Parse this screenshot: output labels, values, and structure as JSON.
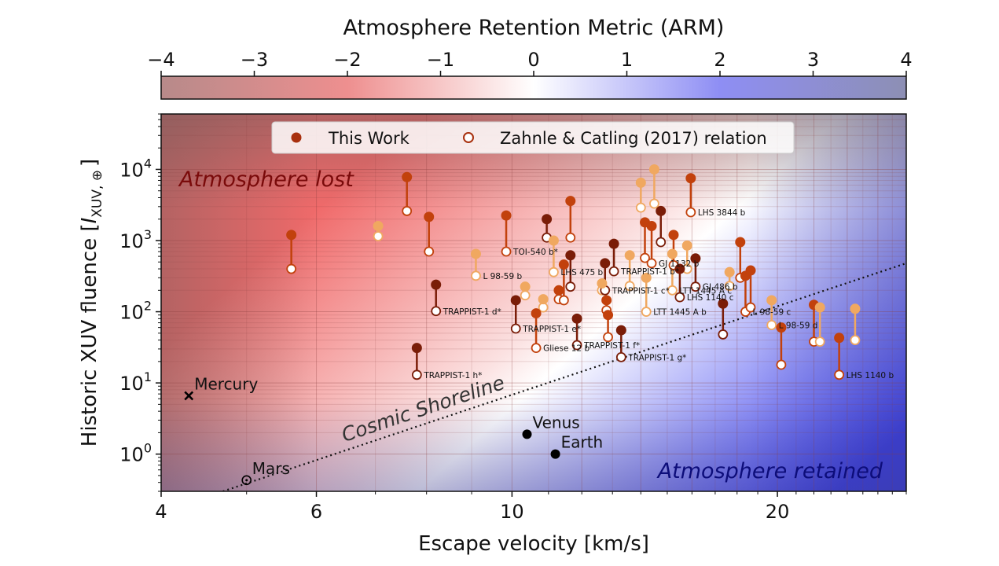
{
  "colors": {
    "lost": "#e8504e",
    "retained": "#4646ee",
    "this_work_dark": "#7a1d08",
    "this_work_mid": "#c2410c",
    "this_work_light": "#f0a860",
    "zc_marker_face": "#ffffff",
    "solar_system": "#000000"
  },
  "colorbar": {
    "label": "Atmosphere Retention Metric (ARM)",
    "ticks": [
      "−4",
      "−3",
      "−2",
      "−1",
      "0",
      "1",
      "2",
      "3",
      "4"
    ],
    "range": [
      -4,
      4
    ]
  },
  "chart_data": {
    "type": "scatter",
    "xlabel": "Escape velocity [km/s]",
    "ylabel_main": "Historic XUV fluence [",
    "ylabel_I": "I",
    "ylabel_sub": "XUV, ⊕",
    "ylabel_end": "]",
    "x_scale": "log",
    "y_scale": "log",
    "xlim": [
      4,
      28
    ],
    "ylim": [
      0.3,
      60000
    ],
    "x_ticks": [
      {
        "value": 4,
        "label": "4"
      },
      {
        "value": 6,
        "label": "6"
      },
      {
        "value": 10,
        "label": "10"
      },
      {
        "value": 20,
        "label": "20"
      }
    ],
    "y_ticks": [
      {
        "value": 1,
        "base": "10",
        "exp": "0"
      },
      {
        "value": 10,
        "base": "10",
        "exp": "1"
      },
      {
        "value": 100,
        "base": "10",
        "exp": "2"
      },
      {
        "value": 1000,
        "base": "10",
        "exp": "3"
      },
      {
        "value": 10000,
        "base": "10",
        "exp": "4"
      }
    ],
    "grid": true,
    "legend": {
      "placement": "top-center",
      "this_work": "This Work",
      "zahnle": "Zahnle & Catling (2017) relation"
    },
    "region_labels": {
      "lost": "Atmosphere lost",
      "retained": "Atmosphere retained"
    },
    "shoreline": {
      "label": "Cosmic Shoreline",
      "x": [
        4.7,
        28
      ],
      "y": [
        0.3,
        480
      ]
    },
    "solar_system": [
      {
        "name": "Mercury",
        "x": 4.3,
        "y": 6.6,
        "marker": "x"
      },
      {
        "name": "Mars",
        "x": 5.0,
        "y": 0.43,
        "marker": "circle-dot"
      },
      {
        "name": "Venus",
        "x": 10.4,
        "y": 1.9,
        "marker": "dot"
      },
      {
        "name": "Earth",
        "x": 11.2,
        "y": 1.0,
        "marker": "dot"
      }
    ],
    "planets": [
      {
        "x": 5.62,
        "this_work": 1200,
        "zc": 400,
        "shade": "mid",
        "label": ""
      },
      {
        "x": 7.05,
        "this_work": 1600,
        "zc": 1150,
        "shade": "light",
        "label": ""
      },
      {
        "x": 7.6,
        "this_work": 7800,
        "zc": 2600,
        "shade": "mid",
        "label": ""
      },
      {
        "x": 8.05,
        "this_work": 2150,
        "zc": 700,
        "shade": "mid",
        "label": ""
      },
      {
        "x": 8.2,
        "this_work": 240,
        "zc": 102,
        "shade": "dark",
        "label": "TRAPPIST-1 d*"
      },
      {
        "x": 7.8,
        "this_work": 31,
        "zc": 13,
        "shade": "dark",
        "label": "TRAPPIST-1 h*"
      },
      {
        "x": 9.1,
        "this_work": 650,
        "zc": 320,
        "shade": "light",
        "label": "L 98-59 b"
      },
      {
        "x": 9.85,
        "this_work": 2250,
        "zc": 700,
        "shade": "mid",
        "label": "TOI-540 b*"
      },
      {
        "x": 10.1,
        "this_work": 145,
        "zc": 58,
        "shade": "dark",
        "label": "TRAPPIST-1 e*"
      },
      {
        "x": 10.35,
        "this_work": 225,
        "zc": 170,
        "shade": "light",
        "label": ""
      },
      {
        "x": 10.65,
        "this_work": 95,
        "zc": 31,
        "shade": "mid",
        "label": "Gliese 12 b"
      },
      {
        "x": 10.85,
        "this_work": 150,
        "zc": 115,
        "shade": "light",
        "label": ""
      },
      {
        "x": 10.95,
        "this_work": 2000,
        "zc": 1100,
        "shade": "dark",
        "label": ""
      },
      {
        "x": 11.15,
        "this_work": 1000,
        "zc": 360,
        "shade": "light",
        "label": "LHS 475 b"
      },
      {
        "x": 11.3,
        "this_work": 200,
        "zc": 150,
        "shade": "mid",
        "label": ""
      },
      {
        "x": 11.45,
        "this_work": 460,
        "zc": 145,
        "shade": "mid",
        "label": ""
      },
      {
        "x": 11.65,
        "this_work": 3600,
        "zc": 1100,
        "shade": "mid",
        "label": ""
      },
      {
        "x": 11.65,
        "this_work": 620,
        "zc": 225,
        "shade": "dark",
        "label": ""
      },
      {
        "x": 11.85,
        "this_work": 80,
        "zc": 34,
        "shade": "dark",
        "label": "TRAPPIST-1 f*"
      },
      {
        "x": 12.65,
        "this_work": 250,
        "zc": 200,
        "shade": "light",
        "label": ""
      },
      {
        "x": 12.75,
        "this_work": 480,
        "zc": 200,
        "shade": "dark",
        "label": "TRAPPIST-1 c*"
      },
      {
        "x": 12.8,
        "this_work": 145,
        "zc": 105,
        "shade": "mid",
        "label": ""
      },
      {
        "x": 12.85,
        "this_work": 90,
        "zc": 44,
        "shade": "mid",
        "label": ""
      },
      {
        "x": 13.05,
        "this_work": 900,
        "zc": 370,
        "shade": "dark",
        "label": "TRAPPIST-1 b*"
      },
      {
        "x": 13.3,
        "this_work": 55,
        "zc": 23,
        "shade": "dark",
        "label": "TRAPPIST-1 g*"
      },
      {
        "x": 13.6,
        "this_work": 620,
        "zc": 230,
        "shade": "light",
        "label": ""
      },
      {
        "x": 14.0,
        "this_work": 6500,
        "zc": 2900,
        "shade": "light",
        "label": ""
      },
      {
        "x": 14.15,
        "this_work": 1800,
        "zc": 570,
        "shade": "mid",
        "label": ""
      },
      {
        "x": 14.2,
        "this_work": 300,
        "zc": 100,
        "shade": "light",
        "label": "LTT 1445 A b"
      },
      {
        "x": 14.4,
        "this_work": 1600,
        "zc": 480,
        "shade": "mid",
        "label": "GJ 1132 b"
      },
      {
        "x": 14.5,
        "this_work": 10000,
        "zc": 3300,
        "shade": "light",
        "label": ""
      },
      {
        "x": 14.75,
        "this_work": 2600,
        "zc": 950,
        "shade": "dark",
        "label": ""
      },
      {
        "x": 15.2,
        "this_work": 650,
        "zc": 200,
        "shade": "light",
        "label": "LTT 1445 A c"
      },
      {
        "x": 15.25,
        "this_work": 1200,
        "zc": 450,
        "shade": "mid",
        "label": ""
      },
      {
        "x": 15.5,
        "this_work": 400,
        "zc": 160,
        "shade": "dark",
        "label": "LHS 1140 c"
      },
      {
        "x": 15.8,
        "this_work": 850,
        "zc": 400,
        "shade": "light",
        "label": ""
      },
      {
        "x": 15.95,
        "this_work": 7500,
        "zc": 2500,
        "shade": "mid",
        "label": "LHS 3844 b"
      },
      {
        "x": 16.15,
        "this_work": 560,
        "zc": 225,
        "shade": "dark",
        "label": "GJ 486 b"
      },
      {
        "x": 17.35,
        "this_work": 130,
        "zc": 48,
        "shade": "dark",
        "label": ""
      },
      {
        "x": 17.65,
        "this_work": 360,
        "zc": 230,
        "shade": "light",
        "label": ""
      },
      {
        "x": 18.15,
        "this_work": 950,
        "zc": 300,
        "shade": "mid",
        "label": ""
      },
      {
        "x": 18.4,
        "this_work": 320,
        "zc": 100,
        "shade": "mid",
        "label": "L 98-59 c"
      },
      {
        "x": 18.65,
        "this_work": 380,
        "zc": 115,
        "shade": "mid",
        "label": ""
      },
      {
        "x": 19.7,
        "this_work": 145,
        "zc": 65,
        "shade": "light",
        "label": "L 98-59 d"
      },
      {
        "x": 20.2,
        "this_work": 60,
        "zc": 18,
        "shade": "mid",
        "label": ""
      },
      {
        "x": 22.0,
        "this_work": 125,
        "zc": 38,
        "shade": "mid",
        "label": ""
      },
      {
        "x": 22.35,
        "this_work": 115,
        "zc": 38,
        "shade": "light",
        "label": ""
      },
      {
        "x": 23.5,
        "this_work": 43,
        "zc": 13,
        "shade": "mid",
        "label": "LHS 1140 b"
      },
      {
        "x": 24.5,
        "this_work": 110,
        "zc": 40,
        "shade": "light",
        "label": ""
      }
    ]
  }
}
